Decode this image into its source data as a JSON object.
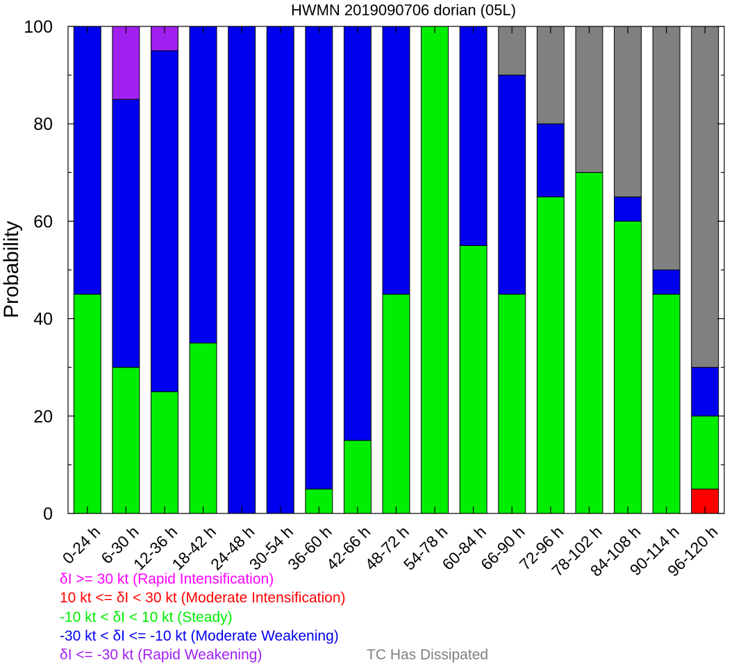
{
  "chart_data": {
    "type": "bar",
    "stacked": true,
    "title": "HWMN 2019090706 dorian (05L)",
    "xlabel": "",
    "ylabel": "Probability",
    "ylim": [
      0,
      100
    ],
    "yticks": [
      0,
      20,
      40,
      60,
      80,
      100
    ],
    "grid": false,
    "categories": [
      "0-24 h",
      "6-30 h",
      "12-36 h",
      "18-42 h",
      "24-48 h",
      "30-54 h",
      "36-60 h",
      "42-66 h",
      "48-72 h",
      "54-78 h",
      "60-84 h",
      "66-90 h",
      "72-96 h",
      "78-102 h",
      "84-108 h",
      "90-114 h",
      "96-120 h"
    ],
    "series": [
      {
        "name": "δI >= 30 kt (Rapid Intensification)",
        "color": "#ff00ff",
        "values": [
          0,
          0,
          0,
          0,
          0,
          0,
          0,
          0,
          0,
          0,
          0,
          0,
          0,
          0,
          0,
          0,
          0
        ]
      },
      {
        "name": "10 kt <= δI < 30 kt (Moderate Intensification)",
        "color": "#ff0000",
        "values": [
          0,
          0,
          0,
          0,
          0,
          0,
          0,
          0,
          0,
          0,
          0,
          0,
          0,
          0,
          0,
          0,
          5
        ]
      },
      {
        "name": "-10 kt < δI < 10 kt (Steady)",
        "color": "#00ee00",
        "values": [
          45,
          30,
          25,
          35,
          0,
          0,
          5,
          15,
          45,
          100,
          55,
          45,
          65,
          70,
          60,
          45,
          15
        ]
      },
      {
        "name": "-30 kt < δI <= -10 kt (Moderate Weakening)",
        "color": "#0000ee",
        "values": [
          55,
          55,
          70,
          65,
          100,
          100,
          95,
          85,
          55,
          0,
          45,
          45,
          15,
          0,
          5,
          5,
          10
        ]
      },
      {
        "name": "δI <= -30 kt (Rapid Weakening)",
        "color": "#a020f0",
        "values": [
          0,
          15,
          5,
          0,
          0,
          0,
          0,
          0,
          0,
          0,
          0,
          0,
          0,
          0,
          0,
          0,
          0
        ]
      },
      {
        "name": "TC Has Dissipated",
        "color": "#808080",
        "values": [
          0,
          0,
          0,
          0,
          0,
          0,
          0,
          0,
          0,
          0,
          0,
          10,
          20,
          30,
          35,
          50,
          70
        ]
      }
    ],
    "stack_order": [
      "10 kt <= δI < 30 kt (Moderate Intensification)",
      "-10 kt < δI < 10 kt (Steady)",
      "-30 kt < δI <= -10 kt (Moderate Weakening)",
      "δI <= -30 kt (Rapid Weakening)",
      "TC Has Dissipated"
    ],
    "legend_placement": "bottom"
  },
  "legend": {
    "rapid_intensification": {
      "label": "δI >= 30 kt (Rapid Intensification)",
      "color": "#ff00ff"
    },
    "moderate_intensification": {
      "label": "10 kt <= δI < 30 kt (Moderate Intensification)",
      "color": "#ff0000"
    },
    "steady": {
      "label": "-10 kt < δI < 10 kt (Steady)",
      "color": "#00ee00"
    },
    "moderate_weakening": {
      "label": "-30 kt < δI <= -10 kt (Moderate Weakening)",
      "color": "#0000ee"
    },
    "rapid_weakening": {
      "label": "δI <= -30 kt (Rapid Weakening)",
      "color": "#a020f0"
    },
    "dissipated": {
      "label": "TC Has Dissipated",
      "color": "#808080"
    }
  }
}
